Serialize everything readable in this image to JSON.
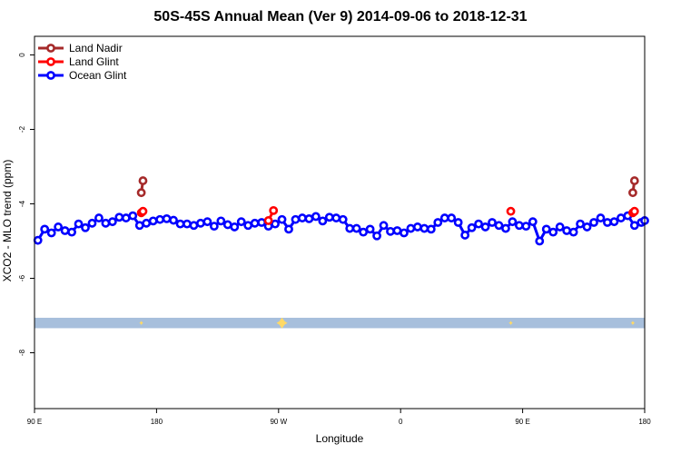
{
  "chart_data": {
    "type": "line",
    "title": "50S-45S Annual Mean (Ver 9)   2014-09-06 to 2018-12-31",
    "xlabel": "Longitude",
    "ylabel": "XCO2 - MLO trend (ppm)",
    "xlim": [
      90,
      450
    ],
    "ylim": [
      -9.5,
      0.5
    ],
    "x_ticks": [
      {
        "value": 90,
        "label": "90 E"
      },
      {
        "value": 162,
        "label": "180"
      },
      {
        "value": 234,
        "label": "90 W"
      },
      {
        "value": 306,
        "label": "0"
      },
      {
        "value": 378,
        "label": "90 E"
      },
      {
        "value": 450,
        "label": "180"
      }
    ],
    "y_ticks": [
      {
        "value": 0,
        "label": "0"
      },
      {
        "value": -2,
        "label": "-2"
      },
      {
        "value": -4,
        "label": "-4"
      },
      {
        "value": -6,
        "label": "-6"
      },
      {
        "value": -8,
        "label": "-8"
      }
    ],
    "grid": false,
    "legend_position": "top-left",
    "series": [
      {
        "name": "Land Nadir",
        "color": "#a52a2a",
        "segments": [
          [
            [
              153,
              -3.7
            ],
            [
              154,
              -3.38
            ]
          ],
          [
            [
              443,
              -3.7
            ],
            [
              444,
              -3.38
            ]
          ]
        ]
      },
      {
        "name": "Land Glint",
        "color": "#ff0000",
        "segments": [
          [
            [
              153,
              -4.24
            ],
            [
              154,
              -4.2
            ]
          ],
          [
            [
              228,
              -4.45
            ],
            [
              231,
              -4.18
            ]
          ],
          [
            [
              371,
              -4.2
            ]
          ],
          [
            [
              443,
              -4.24
            ],
            [
              444,
              -4.2
            ]
          ]
        ]
      },
      {
        "name": "Ocean Glint",
        "color": "#0000ff",
        "segments": [
          [
            [
              92,
              -4.98
            ],
            [
              96,
              -4.68
            ],
            [
              100,
              -4.78
            ],
            [
              104,
              -4.62
            ],
            [
              108,
              -4.72
            ],
            [
              112,
              -4.76
            ],
            [
              116,
              -4.54
            ],
            [
              120,
              -4.64
            ],
            [
              124,
              -4.52
            ],
            [
              128,
              -4.38
            ],
            [
              132,
              -4.52
            ],
            [
              136,
              -4.48
            ],
            [
              140,
              -4.36
            ],
            [
              144,
              -4.38
            ],
            [
              148,
              -4.32
            ],
            [
              152,
              -4.58
            ],
            [
              156,
              -4.52
            ],
            [
              160,
              -4.46
            ],
            [
              164,
              -4.42
            ],
            [
              168,
              -4.4
            ],
            [
              172,
              -4.44
            ],
            [
              176,
              -4.54
            ],
            [
              180,
              -4.54
            ],
            [
              184,
              -4.58
            ],
            [
              188,
              -4.52
            ],
            [
              192,
              -4.48
            ],
            [
              196,
              -4.6
            ],
            [
              200,
              -4.46
            ],
            [
              204,
              -4.56
            ],
            [
              208,
              -4.62
            ],
            [
              212,
              -4.48
            ],
            [
              216,
              -4.58
            ],
            [
              220,
              -4.52
            ],
            [
              224,
              -4.5
            ],
            [
              228,
              -4.6
            ],
            [
              232,
              -4.54
            ],
            [
              236,
              -4.42
            ],
            [
              240,
              -4.68
            ],
            [
              244,
              -4.42
            ],
            [
              248,
              -4.38
            ],
            [
              252,
              -4.4
            ],
            [
              256,
              -4.34
            ],
            [
              260,
              -4.46
            ],
            [
              264,
              -4.36
            ],
            [
              268,
              -4.38
            ],
            [
              272,
              -4.42
            ],
            [
              276,
              -4.66
            ],
            [
              280,
              -4.66
            ],
            [
              284,
              -4.76
            ],
            [
              288,
              -4.68
            ],
            [
              292,
              -4.86
            ],
            [
              296,
              -4.58
            ],
            [
              300,
              -4.74
            ],
            [
              304,
              -4.72
            ],
            [
              308,
              -4.78
            ],
            [
              312,
              -4.66
            ],
            [
              316,
              -4.62
            ],
            [
              320,
              -4.66
            ],
            [
              324,
              -4.68
            ],
            [
              328,
              -4.5
            ],
            [
              332,
              -4.38
            ],
            [
              336,
              -4.38
            ],
            [
              340,
              -4.5
            ],
            [
              344,
              -4.84
            ],
            [
              348,
              -4.64
            ],
            [
              352,
              -4.54
            ],
            [
              356,
              -4.62
            ],
            [
              360,
              -4.5
            ],
            [
              364,
              -4.58
            ],
            [
              368,
              -4.66
            ],
            [
              372,
              -4.48
            ],
            [
              376,
              -4.58
            ],
            [
              380,
              -4.6
            ],
            [
              384,
              -4.48
            ],
            [
              388,
              -5.0
            ],
            [
              392,
              -4.68
            ],
            [
              396,
              -4.76
            ],
            [
              400,
              -4.62
            ],
            [
              404,
              -4.72
            ],
            [
              408,
              -4.76
            ],
            [
              412,
              -4.54
            ],
            [
              416,
              -4.62
            ],
            [
              420,
              -4.5
            ],
            [
              424,
              -4.38
            ],
            [
              428,
              -4.5
            ],
            [
              432,
              -4.48
            ],
            [
              436,
              -4.38
            ],
            [
              440,
              -4.32
            ],
            [
              444,
              -4.58
            ],
            [
              448,
              -4.5
            ],
            [
              450,
              -4.45
            ]
          ]
        ]
      }
    ],
    "land_ocean_band": {
      "y_top": -7.06,
      "y_bottom": -7.34,
      "color": "#a7bfdc"
    },
    "land_markers": {
      "color": "#ffd966",
      "points": [
        [
          153,
          -7.2
        ],
        [
          236,
          -7.2
        ],
        [
          371,
          -7.2
        ],
        [
          443,
          -7.2
        ]
      ]
    }
  }
}
